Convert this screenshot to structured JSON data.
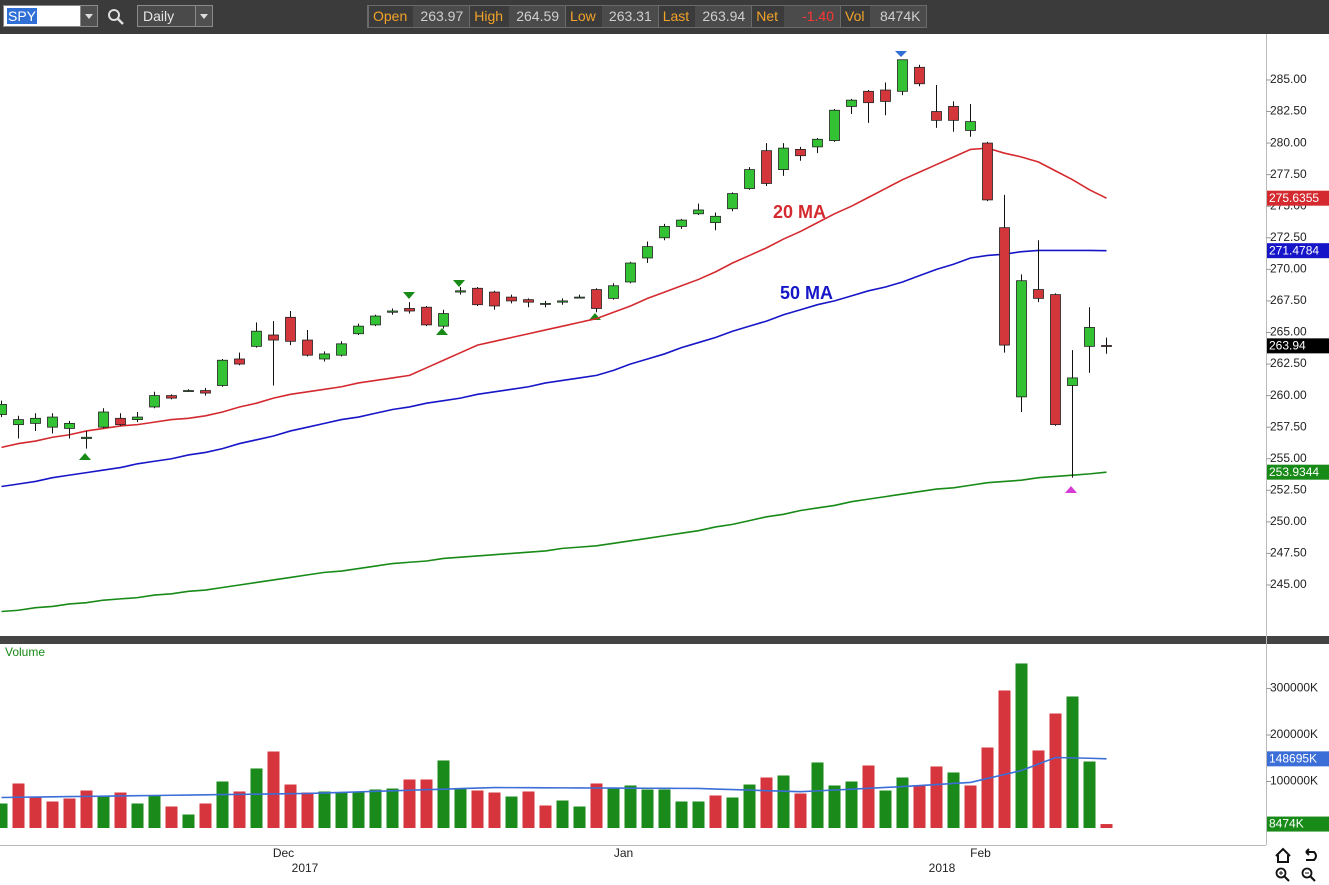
{
  "header": {
    "symbol": "SPY",
    "interval": "Daily",
    "quote": [
      {
        "label": "Open",
        "value": "263.97"
      },
      {
        "label": "High",
        "value": "264.59"
      },
      {
        "label": "Low",
        "value": "263.31"
      },
      {
        "label": "Last",
        "value": "263.94"
      },
      {
        "label": "Net",
        "value": "-1.40"
      },
      {
        "label": "Vol",
        "value": "8474K"
      }
    ]
  },
  "chart_data": [
    {
      "type": "candlestick",
      "categories": [
        null,
        null,
        null,
        null,
        null,
        null,
        null,
        null,
        null,
        null,
        null,
        null,
        null,
        null,
        null,
        null,
        null,
        "Dec",
        null,
        null,
        null,
        null,
        null,
        null,
        null,
        null,
        null,
        null,
        null,
        null,
        null,
        null,
        null,
        null,
        null,
        null,
        null,
        "Jan",
        null,
        null,
        null,
        null,
        null,
        null,
        null,
        null,
        null,
        null,
        null,
        null,
        null,
        null,
        null,
        null,
        null,
        null,
        null,
        null,
        "Feb",
        null,
        null,
        null,
        null,
        null,
        null,
        null
      ],
      "year_labels": [
        "2017",
        "2018"
      ],
      "open": [
        258.5,
        257.7,
        257.8,
        257.5,
        257.4,
        256.6,
        257.5,
        258.2,
        258.1,
        259.1,
        260.0,
        260.4,
        260.4,
        260.8,
        262.9,
        263.9,
        264.8,
        266.2,
        264.4,
        262.9,
        263.2,
        264.9,
        265.6,
        266.6,
        266.9,
        267.0,
        265.5,
        268.2,
        268.5,
        268.2,
        267.8,
        267.6,
        267.3,
        267.4,
        267.8,
        268.4,
        267.7,
        269.0,
        270.9,
        272.5,
        273.4,
        274.4,
        273.7,
        274.8,
        276.4,
        279.4,
        277.9,
        279.5,
        279.7,
        280.2,
        282.9,
        284.1,
        284.2,
        284.1,
        286.0,
        282.5,
        282.9,
        281.0,
        280.0,
        273.3,
        259.9,
        268.4,
        268.0,
        260.8,
        263.9,
        263.97
      ],
      "high": [
        259.6,
        258.4,
        258.6,
        258.6,
        258.0,
        257.2,
        259.0,
        258.6,
        258.7,
        260.3,
        260.1,
        260.5,
        260.6,
        262.9,
        263.4,
        265.8,
        265.9,
        266.7,
        265.2,
        263.5,
        264.3,
        265.7,
        266.4,
        266.9,
        267.4,
        267.1,
        266.8,
        268.6,
        268.6,
        268.3,
        268.0,
        267.7,
        267.5,
        267.7,
        268.0,
        268.5,
        268.9,
        270.6,
        272.2,
        273.6,
        274.0,
        275.2,
        274.5,
        276.1,
        278.1,
        280.0,
        280.0,
        279.7,
        280.4,
        282.7,
        283.5,
        284.2,
        284.8,
        286.6,
        286.2,
        284.6,
        283.3,
        283.1,
        280.1,
        275.9,
        269.6,
        272.3,
        268.1,
        263.6,
        267.0,
        264.59
      ],
      "low": [
        258.3,
        256.6,
        257.2,
        257.0,
        256.6,
        255.8,
        257.4,
        257.6,
        257.9,
        259.0,
        259.7,
        260.3,
        260.0,
        260.7,
        262.4,
        263.8,
        260.8,
        264.0,
        263.1,
        262.7,
        263.1,
        264.8,
        265.5,
        266.4,
        266.5,
        265.5,
        265.3,
        268.0,
        267.1,
        266.8,
        267.3,
        267.0,
        267.0,
        267.2,
        267.7,
        266.6,
        267.6,
        268.9,
        270.5,
        272.3,
        273.2,
        274.3,
        273.1,
        274.6,
        276.3,
        276.6,
        277.4,
        278.6,
        279.2,
        280.1,
        282.3,
        281.6,
        282.2,
        283.8,
        284.5,
        281.2,
        280.9,
        280.5,
        275.4,
        263.4,
        258.7,
        267.4,
        257.6,
        253.5,
        261.8,
        263.31
      ],
      "close": [
        259.3,
        258.1,
        258.2,
        258.3,
        257.8,
        256.7,
        258.7,
        257.7,
        258.3,
        260.0,
        259.8,
        260.4,
        260.2,
        262.8,
        262.5,
        265.1,
        264.4,
        264.3,
        263.2,
        263.3,
        264.1,
        265.5,
        266.3,
        266.7,
        266.7,
        265.6,
        266.5,
        268.3,
        267.2,
        267.1,
        267.5,
        267.4,
        267.3,
        267.5,
        267.8,
        266.9,
        268.7,
        270.5,
        271.8,
        273.4,
        273.9,
        274.7,
        274.2,
        276.0,
        277.9,
        276.8,
        279.6,
        279.0,
        280.3,
        282.6,
        283.4,
        283.2,
        283.3,
        286.6,
        284.7,
        281.8,
        281.8,
        281.7,
        275.5,
        264.0,
        269.1,
        267.7,
        257.7,
        261.4,
        265.4,
        263.94
      ],
      "up_color": "#33c233",
      "down_color": "#d3373c",
      "series": [
        {
          "name": "20 MA",
          "color": "#d42a2f",
          "values": [
            255.9,
            256.2,
            256.4,
            256.7,
            256.9,
            257.2,
            257.4,
            257.6,
            257.7,
            257.9,
            258.1,
            258.2,
            258.4,
            258.7,
            259.1,
            259.4,
            259.8,
            260.1,
            260.3,
            260.5,
            260.7,
            261.0,
            261.2,
            261.4,
            261.6,
            262.2,
            262.8,
            263.4,
            264.0,
            264.3,
            264.6,
            264.9,
            265.2,
            265.5,
            265.8,
            266.1,
            266.6,
            267.1,
            267.7,
            268.2,
            268.7,
            269.2,
            269.8,
            270.5,
            271.1,
            271.7,
            272.4,
            273.0,
            273.7,
            274.4,
            275.0,
            275.7,
            276.4,
            277.1,
            277.7,
            278.3,
            278.9,
            279.5,
            279.6,
            279.2,
            278.9,
            278.5,
            277.8,
            277.1,
            276.3,
            275.6355
          ]
        },
        {
          "name": "50 MA",
          "color": "#1616c8",
          "values": [
            252.8,
            253.0,
            253.2,
            253.5,
            253.7,
            253.9,
            254.1,
            254.3,
            254.6,
            254.8,
            255.0,
            255.3,
            255.5,
            255.8,
            256.2,
            256.5,
            256.8,
            257.2,
            257.5,
            257.8,
            258.1,
            258.3,
            258.6,
            258.9,
            259.1,
            259.4,
            259.6,
            259.8,
            260.1,
            260.3,
            260.5,
            260.7,
            261.0,
            261.2,
            261.4,
            261.6,
            262.0,
            262.5,
            262.9,
            263.3,
            263.8,
            264.2,
            264.6,
            265.1,
            265.5,
            265.9,
            266.4,
            266.8,
            267.2,
            267.5,
            267.9,
            268.3,
            268.6,
            269.0,
            269.5,
            270.0,
            270.4,
            270.9,
            271.1,
            271.2,
            271.4,
            271.5,
            271.5,
            271.5,
            271.5,
            271.4784
          ]
        },
        {
          "color": "#178a17",
          "values": [
            242.9,
            243.0,
            243.2,
            243.3,
            243.5,
            243.6,
            243.8,
            243.9,
            244.0,
            244.2,
            244.3,
            244.5,
            244.6,
            244.8,
            245.0,
            245.2,
            245.4,
            245.6,
            245.8,
            246.0,
            246.1,
            246.3,
            246.5,
            246.7,
            246.8,
            246.9,
            247.1,
            247.2,
            247.3,
            247.4,
            247.5,
            247.6,
            247.7,
            247.9,
            248.0,
            248.1,
            248.3,
            248.5,
            248.7,
            248.9,
            249.1,
            249.3,
            249.6,
            249.8,
            250.1,
            250.4,
            250.6,
            250.9,
            251.1,
            251.3,
            251.6,
            251.8,
            252.0,
            252.2,
            252.4,
            252.6,
            252.7,
            252.9,
            253.1,
            253.2,
            253.3,
            253.5,
            253.6,
            253.7,
            253.8,
            253.9344
          ]
        }
      ],
      "ylim": [
        240.96,
        288.56
      ],
      "yticks": [
        {
          "value": 285,
          "label": "285.00"
        },
        {
          "value": 282.5,
          "label": "282.50"
        },
        {
          "value": 280,
          "label": "280.00"
        },
        {
          "value": 277.5,
          "label": "277.50"
        },
        {
          "value": 275,
          "label": "275.00"
        },
        {
          "value": 272.5,
          "label": "272.50"
        },
        {
          "value": 270,
          "label": "270.00"
        },
        {
          "value": 267.5,
          "label": "267.50"
        },
        {
          "value": 265,
          "label": "265.00"
        },
        {
          "value": 262.5,
          "label": "262.50"
        },
        {
          "value": 260,
          "label": "260.00"
        },
        {
          "value": 257.5,
          "label": "257.50"
        },
        {
          "value": 255,
          "label": "255.00"
        },
        {
          "value": 252.5,
          "label": "252.50"
        },
        {
          "value": 250,
          "label": "250.00"
        },
        {
          "value": 247.5,
          "label": "247.50"
        },
        {
          "value": 245,
          "label": "245.00"
        }
      ],
      "grid": false
    },
    {
      "type": "bar",
      "title": "Volume",
      "values": [
        52700,
        95700,
        65600,
        57000,
        63400,
        80600,
        67700,
        76300,
        52700,
        69900,
        46200,
        29000,
        52700,
        100000,
        78500,
        128000,
        164500,
        93500,
        76300,
        78500,
        76300,
        76300,
        82800,
        84900,
        104300,
        104300,
        145200,
        84900,
        80600,
        76300,
        67700,
        78500,
        48400,
        59100,
        46200,
        95700,
        87100,
        91400,
        82800,
        82800,
        57000,
        57000,
        69900,
        65600,
        93500,
        108600,
        112900,
        74200,
        140900,
        91400,
        100000,
        134400,
        80600,
        108600,
        91400,
        132300,
        119400,
        91400,
        173100,
        295700,
        353800,
        166700,
        246200,
        282800,
        143000,
        8474
      ],
      "value_labels": [
        null,
        null,
        null,
        null,
        null,
        null,
        null,
        null,
        null,
        null,
        null,
        null,
        null,
        null,
        null,
        null,
        null,
        null,
        null,
        null,
        null,
        null,
        null,
        null,
        null,
        null,
        null,
        null,
        null,
        null,
        null,
        null,
        null,
        null,
        null,
        null,
        null,
        null,
        null,
        null,
        null,
        null,
        null,
        null,
        null,
        null,
        null,
        null,
        null,
        null,
        null,
        null,
        null,
        null,
        null,
        null,
        null,
        null,
        null,
        null,
        null,
        null,
        null,
        null,
        null,
        "8474K"
      ],
      "colors": [
        "#1a8a1a",
        "#d6353d",
        "#d6353d",
        "#d6353d",
        "#d6353d",
        "#d6353d",
        "#1a8a1a",
        "#d6353d",
        "#1a8a1a",
        "#1a8a1a",
        "#d6353d",
        "#1a8a1a",
        "#d6353d",
        "#1a8a1a",
        "#d6353d",
        "#1a8a1a",
        "#d6353d",
        "#d6353d",
        "#d6353d",
        "#1a8a1a",
        "#1a8a1a",
        "#1a8a1a",
        "#1a8a1a",
        "#1a8a1a",
        "#d6353d",
        "#d6353d",
        "#1a8a1a",
        "#1a8a1a",
        "#d6353d",
        "#d6353d",
        "#1a8a1a",
        "#d6353d",
        "#d6353d",
        "#1a8a1a",
        "#1a8a1a",
        "#d6353d",
        "#1a8a1a",
        "#1a8a1a",
        "#1a8a1a",
        "#1a8a1a",
        "#1a8a1a",
        "#1a8a1a",
        "#d6353d",
        "#1a8a1a",
        "#1a8a1a",
        "#d6353d",
        "#1a8a1a",
        "#d6353d",
        "#1a8a1a",
        "#1a8a1a",
        "#1a8a1a",
        "#d6353d",
        "#1a8a1a",
        "#1a8a1a",
        "#d6353d",
        "#d6353d",
        "#1a8a1a",
        "#d6353d",
        "#d6353d",
        "#d6353d",
        "#1a8a1a",
        "#d6353d",
        "#d6353d",
        "#1a8a1a",
        "#1a8a1a",
        "#d6353d"
      ],
      "series": [
        {
          "color": "#3c6ed8",
          "values": [
            65600,
            66100,
            66600,
            67000,
            67500,
            68000,
            68500,
            69000,
            69400,
            69900,
            70400,
            70900,
            71400,
            71900,
            72300,
            72800,
            73300,
            73700,
            74200,
            75400,
            76500,
            77700,
            78900,
            80000,
            81200,
            82300,
            83500,
            84700,
            85800,
            87000,
            86800,
            86700,
            86500,
            86300,
            86200,
            86000,
            85800,
            85700,
            85500,
            85300,
            85200,
            85000,
            83800,
            82700,
            81500,
            80300,
            79200,
            78000,
            79800,
            81700,
            83500,
            85300,
            87200,
            89000,
            91300,
            93500,
            95800,
            98000,
            106600,
            115100,
            123700,
            137700,
            151600,
            150800,
            150000,
            148695
          ],
          "value_labels": [
            null,
            null,
            null,
            null,
            null,
            null,
            null,
            null,
            null,
            null,
            null,
            null,
            null,
            null,
            null,
            null,
            null,
            null,
            null,
            null,
            null,
            null,
            null,
            null,
            null,
            null,
            null,
            null,
            null,
            null,
            null,
            null,
            null,
            null,
            null,
            null,
            null,
            null,
            null,
            null,
            null,
            null,
            null,
            null,
            null,
            null,
            null,
            null,
            null,
            null,
            null,
            null,
            null,
            null,
            null,
            null,
            null,
            null,
            null,
            null,
            null,
            null,
            null,
            null,
            null,
            "148695K"
          ]
        }
      ],
      "ylim": [
        0,
        393500
      ],
      "yticks": [
        {
          "value": 300000,
          "label": "300000K"
        },
        {
          "value": 200000,
          "label": "200000K"
        },
        {
          "value": 100000,
          "label": "100000K"
        }
      ],
      "grid": false
    }
  ]
}
